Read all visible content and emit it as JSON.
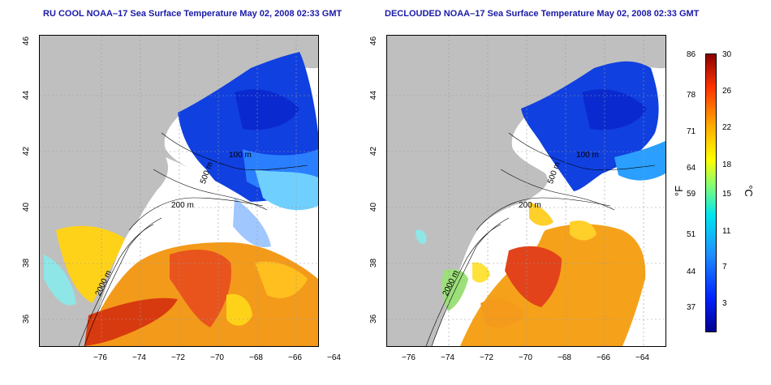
{
  "left_panel": {
    "title": "RU COOL NOAA–17 Sea Surface Temperature May 02, 2008 02:33 GMT",
    "contour_labels": [
      "100 m",
      "500 m",
      "200 m",
      "2000 m"
    ]
  },
  "right_panel": {
    "title": "DECLOUDED NOAA–17 Sea Surface Temperature May 02, 2008 02:33 GMT",
    "contour_labels": [
      "100 m",
      "500 m",
      "200 m",
      "2000 m"
    ]
  },
  "axes": {
    "lon_ticks": [
      "−76",
      "−74",
      "−72",
      "−70",
      "−68",
      "−66",
      "−64"
    ],
    "lat_ticks": [
      "46",
      "44",
      "42",
      "40",
      "38",
      "36"
    ]
  },
  "colorbar": {
    "fahrenheit_label": "°F",
    "celsius_label": "°C",
    "fahrenheit_ticks": [
      "86",
      "78",
      "71",
      "64",
      "59",
      "51",
      "44",
      "37"
    ],
    "celsius_ticks": [
      "30",
      "26",
      "22",
      "18",
      "15",
      "11",
      "7",
      "3"
    ]
  },
  "colors": {
    "land": "#bfbfbf",
    "cold": "#1040e0",
    "warm": "#e8501a",
    "title": "#1a1aa8"
  }
}
